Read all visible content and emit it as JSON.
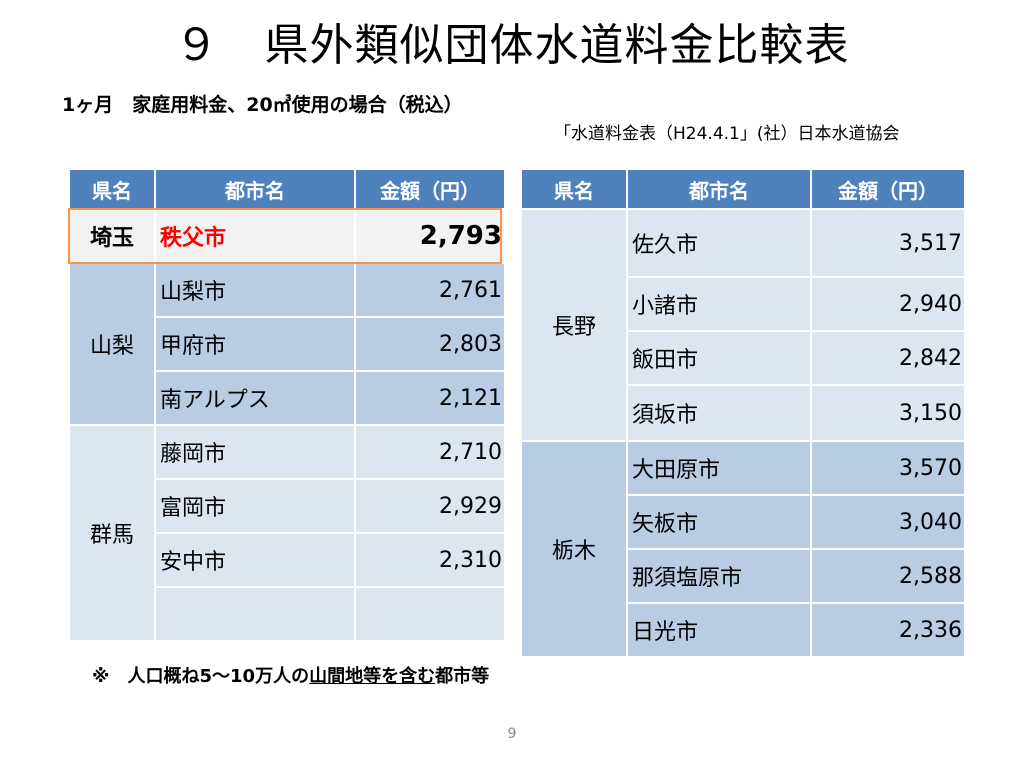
{
  "title": "９　県外類似団体水道料金比較表",
  "subtitle": "1ヶ月　家庭用料金、20㎥使用の場合（税込）",
  "source": "「水道料金表（H24.4.1」(社）日本水道協会",
  "headers": {
    "pref": "県名",
    "city": "都市名",
    "amount": "金額（円）"
  },
  "left_table": {
    "highlight": {
      "pref": "埼玉",
      "city": "秩父市",
      "amount": "2,793"
    },
    "group1": {
      "pref": "山梨",
      "rows": [
        {
          "city": "山梨市",
          "amount": "2,761"
        },
        {
          "city": "甲府市",
          "amount": "2,803"
        },
        {
          "city": "南アルプス",
          "amount": "2,121"
        }
      ]
    },
    "group2": {
      "pref": "群馬",
      "rows": [
        {
          "city": "藤岡市",
          "amount": "2,710"
        },
        {
          "city": "富岡市",
          "amount": "2,929"
        },
        {
          "city": "安中市",
          "amount": "2,310"
        },
        {
          "city": "",
          "amount": ""
        }
      ]
    }
  },
  "right_table": {
    "group1": {
      "pref": "長野",
      "rows": [
        {
          "city": "佐久市",
          "amount": "3,517"
        },
        {
          "city": "小諸市",
          "amount": "2,940"
        },
        {
          "city": "飯田市",
          "amount": "2,842"
        },
        {
          "city": "須坂市",
          "amount": "3,150"
        }
      ]
    },
    "group2": {
      "pref": "栃木",
      "rows": [
        {
          "city": "大田原市",
          "amount": "3,570"
        },
        {
          "city": "矢板市",
          "amount": "3,040"
        },
        {
          "city": "那須塩原市",
          "amount": "2,588"
        },
        {
          "city": "日光市",
          "amount": "2,336"
        }
      ]
    }
  },
  "note": {
    "prefix": "※　人口概ね5～10万人の",
    "underlined": "山間地等を含む",
    "suffix": "都市等"
  },
  "page_number": "9",
  "colors": {
    "header": "#4f81bd",
    "band_dark": "#b8cce4",
    "band_light": "#dce6f1",
    "highlight_border": "#f79646",
    "highlight_text": "#ff0000"
  }
}
